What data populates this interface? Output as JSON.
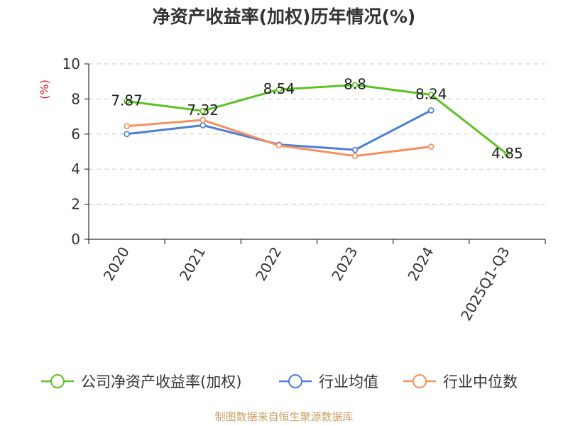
{
  "chart_data": {
    "type": "line",
    "title": "净资产收益率(加权)历年情况(%)",
    "ylabel": "(%)",
    "ylim": [
      0,
      10
    ],
    "yticks": [
      0,
      2,
      4,
      6,
      8,
      10
    ],
    "grid": true,
    "legend_position": "bottom",
    "categories": [
      "2020",
      "2021",
      "2022",
      "2023",
      "2024",
      "2025Q1-Q3"
    ],
    "series": [
      {
        "name": "公司净资产收益率(加权)",
        "color": "#5bc223",
        "values": [
          7.87,
          7.32,
          8.54,
          8.8,
          8.24,
          4.85
        ],
        "labels": true
      },
      {
        "name": "行业均值",
        "color": "#4a7fd6",
        "values": [
          6.0,
          6.5,
          5.4,
          5.1,
          7.35,
          null
        ],
        "labels": false
      },
      {
        "name": "行业中位数",
        "color": "#f78f5c",
        "values": [
          6.45,
          6.8,
          5.35,
          4.75,
          5.28,
          null
        ],
        "labels": false
      }
    ],
    "source": "制图数据来自恒生聚源数据库"
  }
}
